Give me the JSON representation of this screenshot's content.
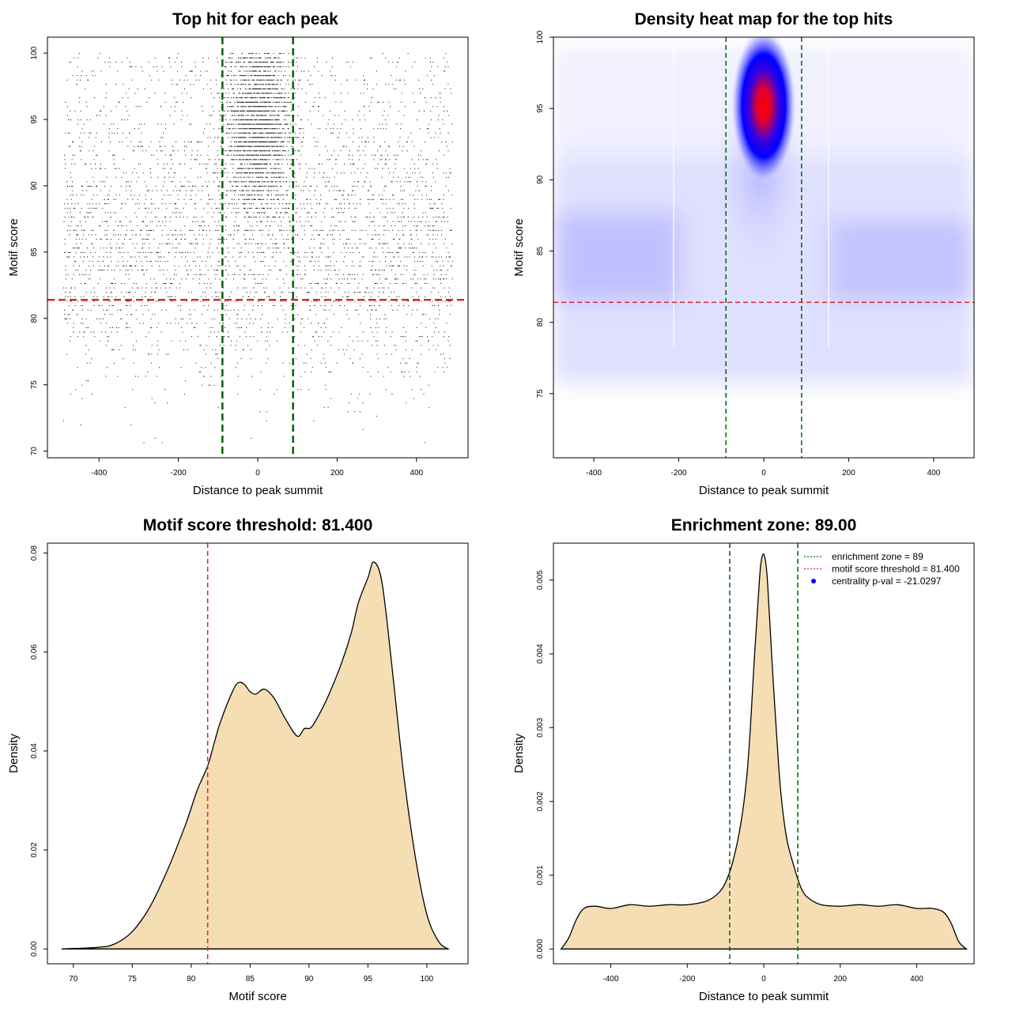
{
  "chart_data": [
    {
      "type": "scatter",
      "title": "Top hit for each peak",
      "xlabel": "Distance to peak summit",
      "ylabel": "Motif score",
      "xlim": [
        -530,
        530
      ],
      "ylim": [
        69.5,
        101.2
      ],
      "xticks": [
        -400,
        -200,
        0,
        200,
        400
      ],
      "yticks": [
        70,
        75,
        80,
        85,
        90,
        95,
        100
      ],
      "xtick_labels": [
        "-400",
        "-200",
        "0",
        "200",
        "400"
      ],
      "ytick_labels": [
        "70",
        "75",
        "80",
        "85",
        "90",
        "95",
        "100"
      ],
      "vlines": [
        -89,
        89
      ],
      "hline": 81.4,
      "vline_color": "#006400",
      "hline_color": "#e0242f"
    },
    {
      "type": "heatmap",
      "title": "Density heat map for the top hits",
      "xlabel": "Distance to peak summit",
      "ylabel": "Motif score",
      "xlim": [
        -495,
        495
      ],
      "ylim": [
        70.5,
        100
      ],
      "xticks": [
        -400,
        -200,
        0,
        200,
        400
      ],
      "yticks": [
        75,
        80,
        85,
        90,
        95,
        100
      ],
      "xtick_labels": [
        "-400",
        "-200",
        "0",
        "200",
        "400"
      ],
      "ytick_labels": [
        "75",
        "80",
        "85",
        "90",
        "95",
        "100"
      ],
      "vlines": [
        -89,
        89
      ],
      "hline": 81.4,
      "peak": {
        "x": 0,
        "y": 95.2
      },
      "colors": [
        "#ffffff",
        "#0000ff",
        "#ff0000"
      ]
    },
    {
      "type": "area",
      "title": "Motif score threshold: 81.400",
      "xlabel": "Motif score",
      "ylabel": "Density",
      "xlim": [
        67.8,
        103.5
      ],
      "ylim": [
        -0.003,
        0.082
      ],
      "xticks": [
        70,
        75,
        80,
        85,
        90,
        95,
        100
      ],
      "yticks": [
        0,
        0.02,
        0.04,
        0.06,
        0.08
      ],
      "xtick_labels": [
        "70",
        "75",
        "80",
        "85",
        "90",
        "95",
        "100"
      ],
      "ytick_labels": [
        "0.00",
        "0.02",
        "0.04",
        "0.06",
        "0.08"
      ],
      "vline": 81.4,
      "fill": "#f5deb3",
      "x": [
        69,
        72,
        73.5,
        75,
        76.5,
        78,
        79.5,
        80.5,
        81.4,
        82,
        82.5,
        83.5,
        84,
        84.5,
        85,
        85.5,
        86.2,
        87,
        88,
        89,
        89.6,
        90.2,
        91,
        91.8,
        92.8,
        93.6,
        94.2,
        95,
        95.5,
        96.2,
        97,
        98,
        99,
        100,
        101,
        101.8
      ],
      "values": [
        0,
        0.0003,
        0.001,
        0.0035,
        0.0085,
        0.016,
        0.025,
        0.032,
        0.037,
        0.042,
        0.046,
        0.052,
        0.0538,
        0.0535,
        0.052,
        0.0515,
        0.0525,
        0.0508,
        0.0465,
        0.043,
        0.0445,
        0.0448,
        0.048,
        0.052,
        0.058,
        0.064,
        0.07,
        0.075,
        0.0782,
        0.074,
        0.058,
        0.036,
        0.019,
        0.007,
        0.0015,
        0
      ]
    },
    {
      "type": "area",
      "title": "Enrichment zone: 89.00",
      "xlabel": "Distance to peak summit",
      "ylabel": "Density",
      "xlim": [
        -550,
        550
      ],
      "ylim": [
        -0.0002,
        0.0055
      ],
      "xticks": [
        -400,
        -200,
        0,
        200,
        400
      ],
      "yticks": [
        0,
        0.001,
        0.002,
        0.003,
        0.004,
        0.005
      ],
      "xtick_labels": [
        "-400",
        "-200",
        "0",
        "200",
        "400"
      ],
      "ytick_labels": [
        "0.000",
        "0.001",
        "0.002",
        "0.003",
        "0.004",
        "0.005"
      ],
      "vlines": [
        -89,
        89
      ],
      "fill": "#f5deb3",
      "x": [
        -530,
        -510,
        -490,
        -470,
        -440,
        -400,
        -350,
        -300,
        -250,
        -200,
        -150,
        -120,
        -100,
        -80,
        -60,
        -45,
        -35,
        -25,
        -15,
        -8,
        0,
        8,
        15,
        25,
        35,
        45,
        60,
        80,
        100,
        120,
        150,
        200,
        250,
        300,
        350,
        400,
        440,
        470,
        490,
        510,
        530
      ],
      "values": [
        0,
        0.00015,
        0.0004,
        0.00055,
        0.00058,
        0.00055,
        0.0006,
        0.00058,
        0.0006,
        0.0006,
        0.00065,
        0.00075,
        0.0009,
        0.0012,
        0.0017,
        0.0023,
        0.003,
        0.0039,
        0.0047,
        0.0052,
        0.00535,
        0.0051,
        0.0045,
        0.0036,
        0.0028,
        0.0021,
        0.0015,
        0.0011,
        0.0008,
        0.00068,
        0.0006,
        0.00058,
        0.0006,
        0.00058,
        0.0006,
        0.00055,
        0.00055,
        0.0005,
        0.00035,
        0.0001,
        0
      ],
      "legend": [
        {
          "label": "enrichment zone = 89",
          "color": "#006400",
          "marker": "dotted-line"
        },
        {
          "label": "motif score threshold = 81.400",
          "color": "#e0242f",
          "marker": "dotted-line"
        },
        {
          "label": "centrality p-val = -21.0297",
          "color": "#0000ff",
          "marker": "dot"
        }
      ]
    }
  ]
}
